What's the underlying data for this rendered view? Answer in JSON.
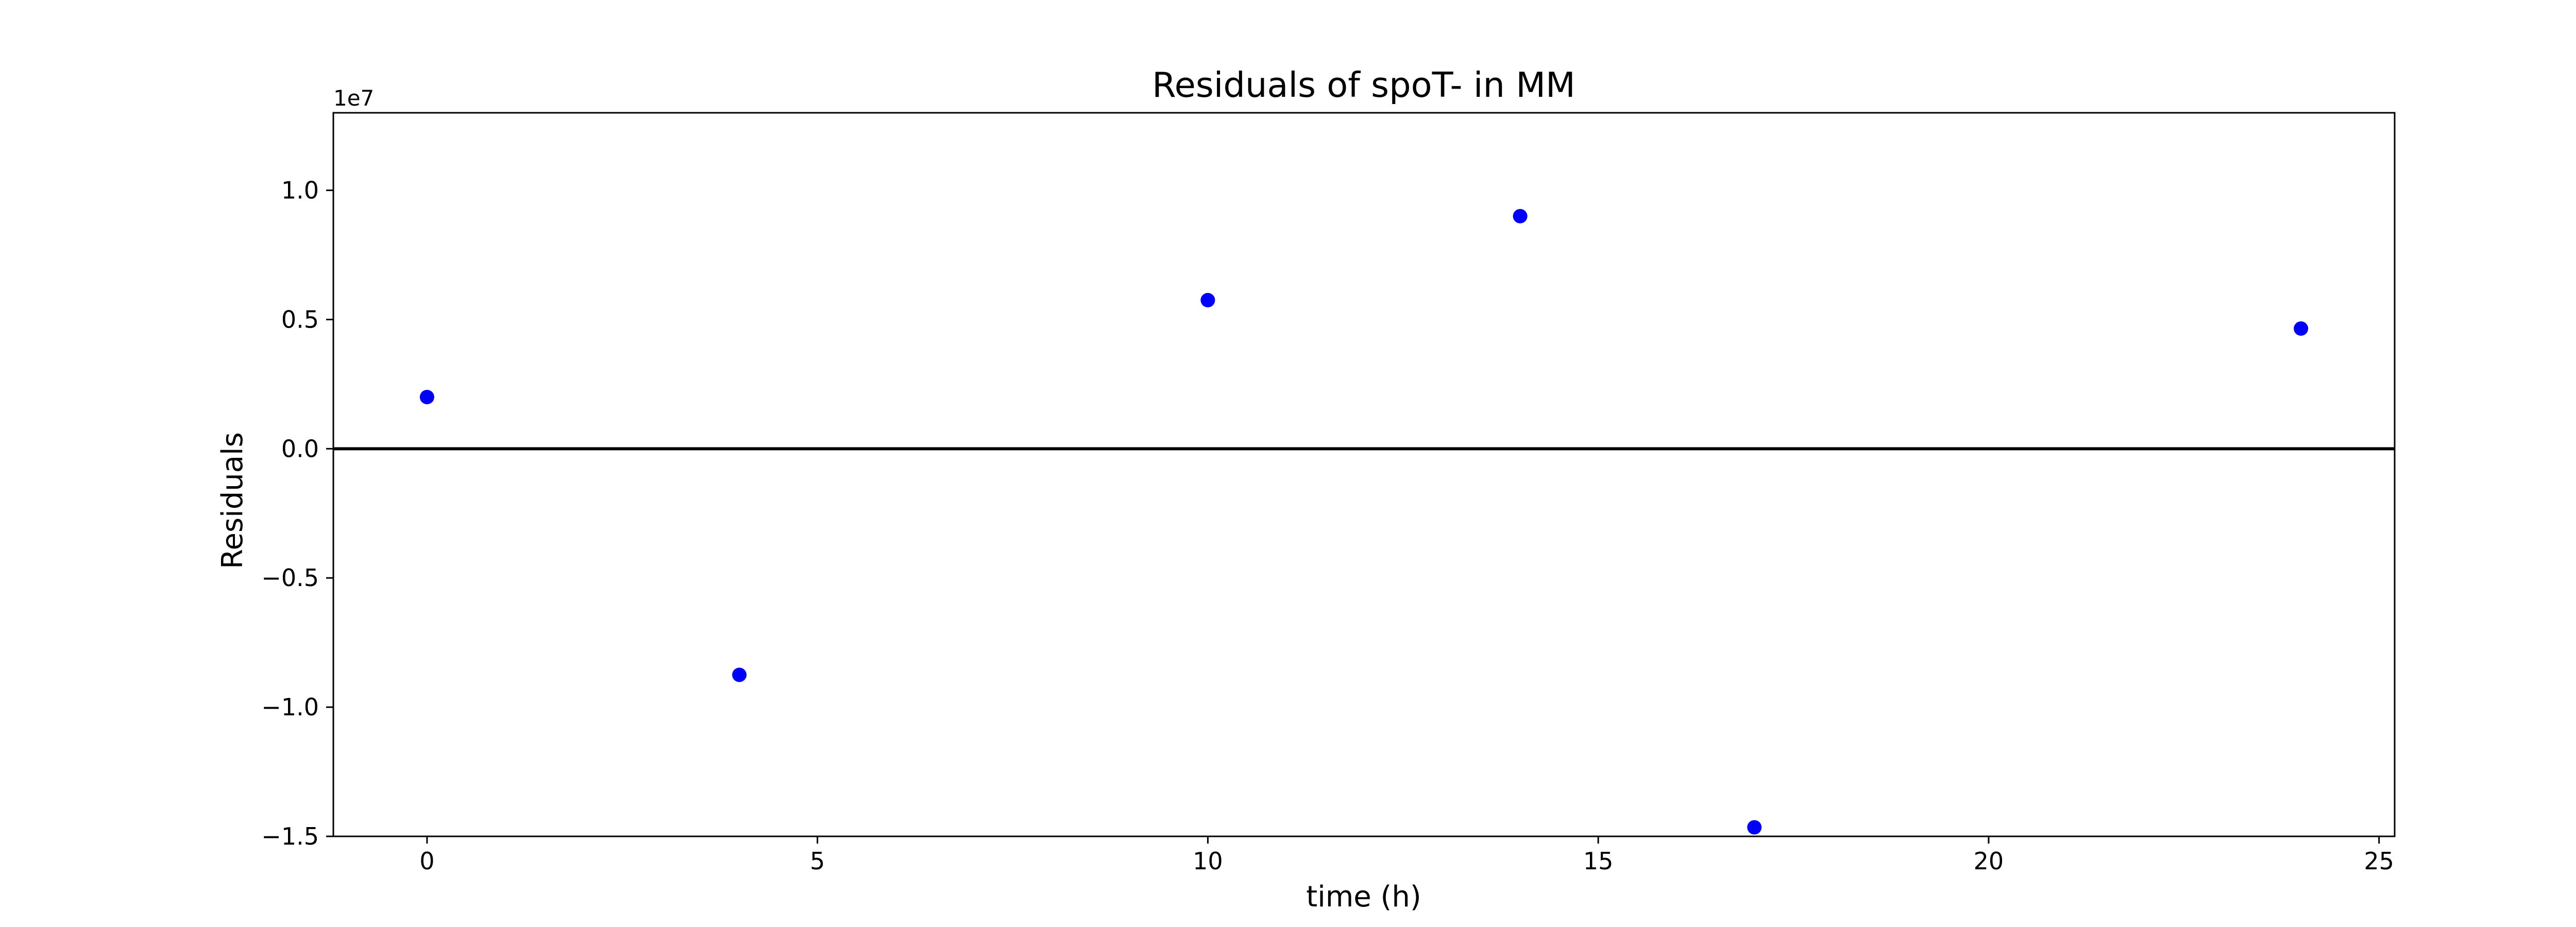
{
  "chart_data": {
    "type": "scatter",
    "title": "Residuals of spoT- in MM",
    "xlabel": "time (h)",
    "ylabel": "Residuals",
    "y_offset_label": "1e7",
    "y_scale_factor": 10000000,
    "xlim": [
      -1.2,
      25.2
    ],
    "ylim": [
      -15000000,
      13000000
    ],
    "x_ticks": [
      0,
      5,
      10,
      15,
      20,
      25
    ],
    "x_tick_labels": [
      "0",
      "5",
      "10",
      "15",
      "20",
      "25"
    ],
    "y_ticks": [
      -15000000,
      -10000000,
      -5000000,
      0,
      5000000,
      10000000
    ],
    "y_tick_labels": [
      "−1.5",
      "−1.0",
      "−0.5",
      "0.0",
      "0.5",
      "1.0"
    ],
    "grid": false,
    "reference_line": {
      "y": 0,
      "color": "#000000"
    },
    "series": [
      {
        "color": "#0000ff",
        "points": [
          {
            "x": 0,
            "y": 2000000
          },
          {
            "x": 4,
            "y": -8750000
          },
          {
            "x": 10,
            "y": 5750000
          },
          {
            "x": 14,
            "y": 9000000
          },
          {
            "x": 17,
            "y": -14650000
          },
          {
            "x": 24,
            "y": 4650000
          }
        ]
      }
    ]
  }
}
